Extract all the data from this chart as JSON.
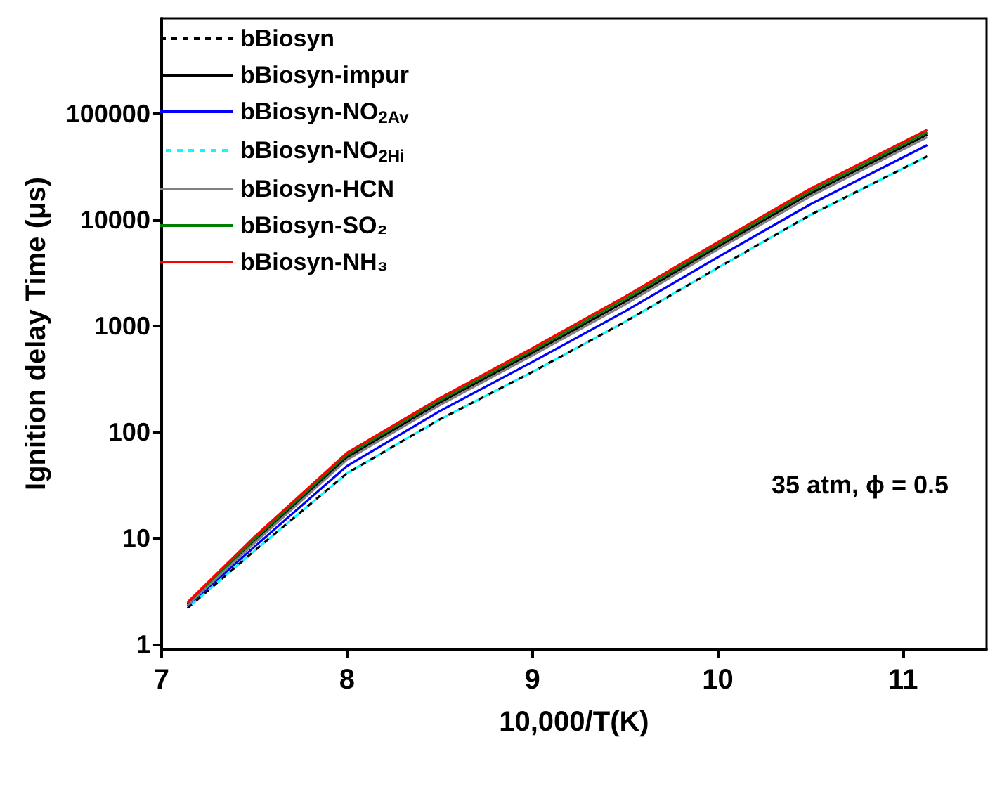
{
  "chart_data": {
    "type": "line",
    "xlabel": "10,000/T(K)",
    "ylabel": "Ignition delay Time (μs)",
    "x": [
      7.14,
      7.5,
      8,
      8.5,
      9,
      9.5,
      10,
      10.5,
      11.13
    ],
    "series": [
      {
        "name": "bBiosyn",
        "color": "#000000",
        "line_style": "dashed",
        "values": [
          2.2,
          7.6,
          41,
          132,
          370,
          1100,
          3550,
          11200,
          40000
        ]
      },
      {
        "name": "bBiosyn-impur",
        "color": "#000000",
        "line_style": "solid",
        "values": [
          2.4,
          9.3,
          58,
          190,
          560,
          1700,
          5600,
          17800,
          64000
        ]
      },
      {
        "name": "bBiosyn-NO$_{2Av}$",
        "color": "#0000ff",
        "line_style": "solid",
        "values": [
          2.3,
          8.3,
          48,
          158,
          460,
          1380,
          4470,
          14100,
          51000
        ]
      },
      {
        "name": "bBiosyn-NO$_{2Hi}$",
        "color": "#00ffff",
        "line_style": "dashed",
        "values": [
          2.2,
          7.6,
          41,
          132,
          370,
          1100,
          3550,
          11200,
          40000
        ]
      },
      {
        "name": "bBiosyn-HCN",
        "color": "#808080",
        "line_style": "solid",
        "values": [
          2.35,
          9,
          55,
          180,
          530,
          1600,
          5300,
          16800,
          60500
        ]
      },
      {
        "name": "bBiosyn-SO₂",
        "color": "#008000",
        "line_style": "solid",
        "values": [
          2.45,
          9.8,
          61,
          200,
          590,
          1800,
          5900,
          18800,
          67500
        ]
      },
      {
        "name": "bBiosyn-NH₃",
        "color": "#ff0000",
        "line_style": "solid",
        "values": [
          2.5,
          10.3,
          64,
          210,
          620,
          1900,
          6200,
          19800,
          71000
        ]
      }
    ],
    "xlim": [
      7,
      11.45
    ],
    "xticks": [
      7,
      8,
      9,
      10,
      11
    ],
    "ylim": [
      0.9,
      800000
    ],
    "yticks": [
      1,
      10,
      100,
      1000,
      10000,
      100000
    ],
    "log": "y",
    "grid": false,
    "legend": "top left",
    "marker": "none",
    "annotations": [
      "35 atm, ϕ = 0.5"
    ]
  }
}
